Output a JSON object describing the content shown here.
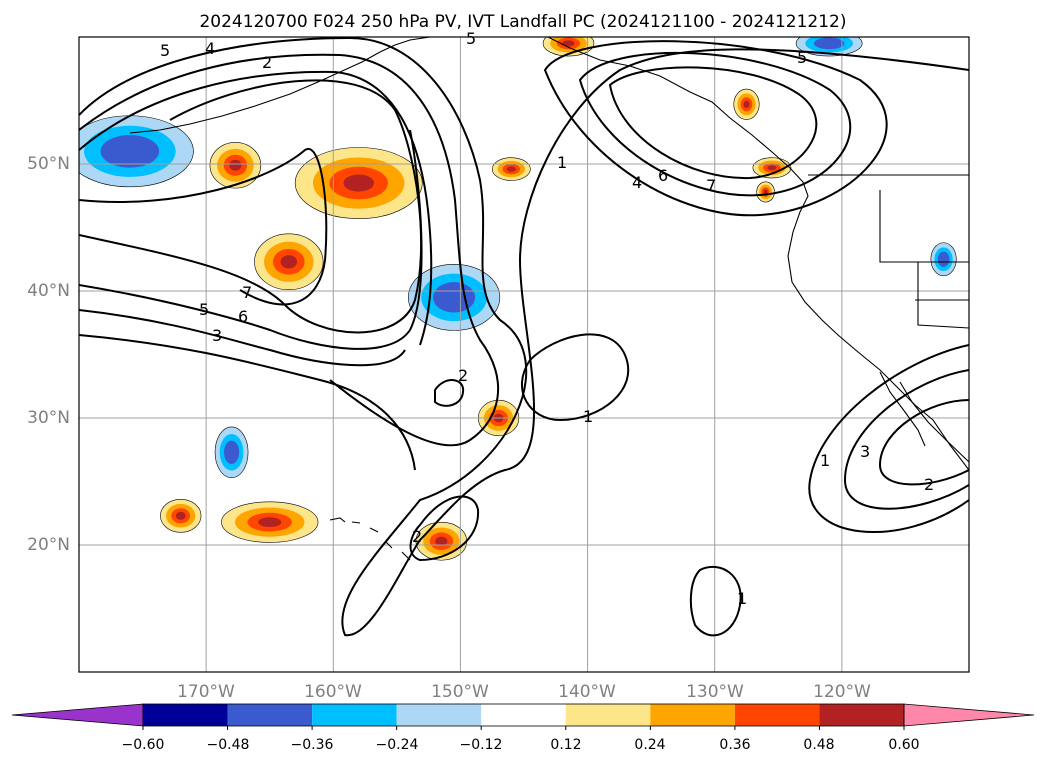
{
  "title": "2024120700 F024 250 hPa PV, IVT Landfall PC (2024121100 - 2024121212)",
  "map": {
    "lon_range": [
      -180,
      -110
    ],
    "lat_range": [
      10,
      60
    ],
    "lon_ticks": [
      {
        "lon": -170,
        "label": "170°W"
      },
      {
        "lon": -160,
        "label": "160°W"
      },
      {
        "lon": -150,
        "label": "150°W"
      },
      {
        "lon": -140,
        "label": "140°W"
      },
      {
        "lon": -130,
        "label": "130°W"
      },
      {
        "lon": -120,
        "label": "120°W"
      }
    ],
    "lat_ticks": [
      {
        "lat": 50,
        "label": "50°N"
      },
      {
        "lat": 40,
        "label": "40°N"
      },
      {
        "lat": 30,
        "label": "30°N"
      },
      {
        "lat": 20,
        "label": "20°N"
      }
    ],
    "gridlines": true,
    "ocean_color": "#ffffff",
    "coastline_color": "#000000"
  },
  "colorbar": {
    "bins": [
      {
        "color": "#9933cc"
      },
      {
        "color": "#000099"
      },
      {
        "color": "#3a5bd0"
      },
      {
        "color": "#00bfff"
      },
      {
        "color": "#add8f5"
      },
      {
        "color": "#ffffff"
      },
      {
        "color": "#fde68a"
      },
      {
        "color": "#ffa500"
      },
      {
        "color": "#ff4500"
      },
      {
        "color": "#b22222"
      },
      {
        "color": "#ff88aa"
      }
    ],
    "tick_labels": [
      "−0.60",
      "−0.48",
      "−0.36",
      "−0.24",
      "−0.12",
      "0.12",
      "0.24",
      "0.36",
      "0.48",
      "0.60"
    ]
  },
  "shaded_anomalies": [
    {
      "lon": -158,
      "lat": 48.5,
      "rx": 5,
      "ry": 2.8,
      "sign": "positive"
    },
    {
      "lon": -163.5,
      "lat": 42.3,
      "rx": 2.7,
      "ry": 2.2,
      "sign": "positive"
    },
    {
      "lon": -167.7,
      "lat": 49.9,
      "rx": 2.0,
      "ry": 1.8,
      "sign": "positive"
    },
    {
      "lon": -176,
      "lat": 51,
      "rx": 5,
      "ry": 2.8,
      "sign": "negative"
    },
    {
      "lon": -150.5,
      "lat": 39.5,
      "rx": 3.6,
      "ry": 2.6,
      "sign": "negative"
    },
    {
      "lon": -168,
      "lat": 27.3,
      "rx": 1.3,
      "ry": 2.0,
      "sign": "negative"
    },
    {
      "lon": -165,
      "lat": 21.8,
      "rx": 3.8,
      "ry": 1.6,
      "sign": "positive"
    },
    {
      "lon": -172,
      "lat": 22.3,
      "rx": 1.6,
      "ry": 1.3,
      "sign": "positive"
    },
    {
      "lon": -147,
      "lat": 30.0,
      "rx": 1.6,
      "ry": 1.4,
      "sign": "positive"
    },
    {
      "lon": -151.5,
      "lat": 20.3,
      "rx": 2.0,
      "ry": 1.5,
      "sign": "positive"
    },
    {
      "lon": -146,
      "lat": 49.6,
      "rx": 1.5,
      "ry": 0.9,
      "sign": "positive"
    },
    {
      "lon": -127.5,
      "lat": 54.7,
      "rx": 1.0,
      "ry": 1.2,
      "sign": "positive"
    },
    {
      "lon": -125.5,
      "lat": 49.7,
      "rx": 1.5,
      "ry": 0.8,
      "sign": "positive"
    },
    {
      "lon": -126,
      "lat": 47.8,
      "rx": 0.7,
      "ry": 0.8,
      "sign": "positive"
    },
    {
      "lon": -141.5,
      "lat": 59.5,
      "rx": 2.0,
      "ry": 1.0,
      "sign": "positive"
    },
    {
      "lon": -121,
      "lat": 59.5,
      "rx": 2.6,
      "ry": 1.0,
      "sign": "negative"
    },
    {
      "lon": -112,
      "lat": 42.5,
      "rx": 1.0,
      "ry": 1.3,
      "sign": "negative"
    }
  ],
  "contours": {
    "labels": [
      "5",
      "4",
      "2",
      "5",
      "1",
      "4",
      "6",
      "7",
      "5",
      "7",
      "5",
      "6",
      "3",
      "2",
      "1",
      "1",
      "3",
      "2",
      "2",
      "1"
    ]
  }
}
